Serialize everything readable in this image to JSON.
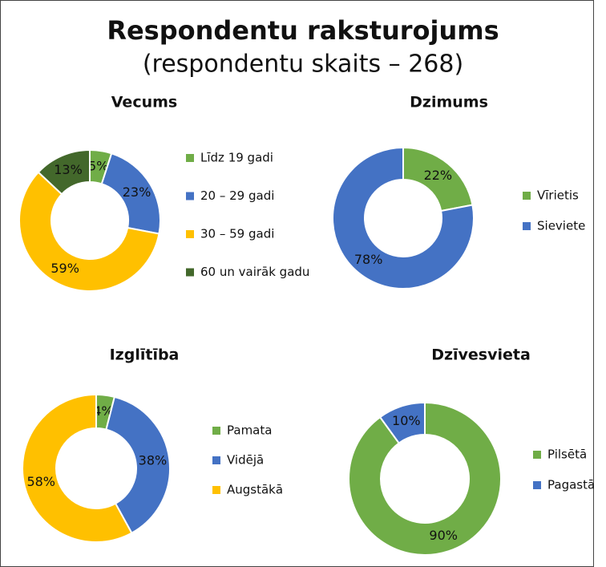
{
  "title": "Respondentu raksturojums",
  "subtitle": "(respondentu skaits – 268)",
  "chart_data": [
    {
      "type": "pie",
      "title": "Vecums",
      "categories": [
        "Līdz 19 gadi",
        "20 – 29 gadi",
        "30 – 59 gadi",
        "60 un vairāk gadu"
      ],
      "values": [
        5,
        23,
        59,
        13
      ],
      "value_labels": [
        "5%",
        "23%",
        "59%",
        "13%"
      ],
      "colors": [
        "#70ad47",
        "#4472c4",
        "#ffc000",
        "#43682b"
      ]
    },
    {
      "type": "pie",
      "title": "Dzimums",
      "categories": [
        "Vīrietis",
        "Sieviete"
      ],
      "values": [
        22,
        78
      ],
      "value_labels": [
        "22%",
        "78%"
      ],
      "colors": [
        "#70ad47",
        "#4472c4"
      ]
    },
    {
      "type": "pie",
      "title": "Izglītība",
      "categories": [
        "Pamata",
        "Vidējā",
        "Augstākā"
      ],
      "values": [
        4,
        38,
        58
      ],
      "value_labels": [
        "4%",
        "38%",
        "58%"
      ],
      "colors": [
        "#70ad47",
        "#4472c4",
        "#ffc000"
      ]
    },
    {
      "type": "pie",
      "title": "Dzīvesvieta",
      "categories": [
        "Pilsētā",
        "Pagastā"
      ],
      "values": [
        90,
        10
      ],
      "value_labels": [
        "90%",
        "10%"
      ],
      "colors": [
        "#70ad47",
        "#4472c4"
      ]
    }
  ]
}
